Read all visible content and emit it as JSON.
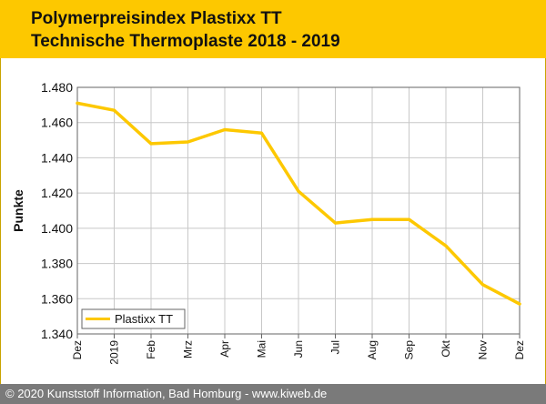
{
  "header": {
    "title_line1": "Polymerpreisindex Plastixx TT",
    "title_line2": "Technische Thermoplaste 2018 - 2019"
  },
  "footer": {
    "text": "© 2020 Kunststoff Information, Bad Homburg - www.kiweb.de"
  },
  "colors": {
    "header_bg": "#fdc800",
    "line": "#fdc800",
    "footer_bg": "#7a7a7a"
  },
  "chart_data": {
    "type": "line",
    "title": "Polymerpreisindex Plastixx TT — Technische Thermoplaste 2018 - 2019",
    "xlabel": "",
    "ylabel": "Punkte",
    "categories": [
      "Dez",
      "2019",
      "Feb",
      "Mrz",
      "Apr",
      "Mai",
      "Jun",
      "Jul",
      "Aug",
      "Sep",
      "Okt",
      "Nov",
      "Dez"
    ],
    "ylim": [
      1340,
      1480
    ],
    "yticks": [
      1340,
      1360,
      1380,
      1400,
      1420,
      1440,
      1460,
      1480
    ],
    "ytick_labels": [
      "1.340",
      "1.360",
      "1.380",
      "1.400",
      "1.420",
      "1.440",
      "1.460",
      "1.480"
    ],
    "grid": true,
    "legend": "bottom-left",
    "series": [
      {
        "name": "Plastixx TT",
        "values": [
          1471,
          1467,
          1448,
          1449,
          1456,
          1454,
          1421,
          1403,
          1405,
          1405,
          1390,
          1368,
          1357
        ]
      }
    ]
  }
}
